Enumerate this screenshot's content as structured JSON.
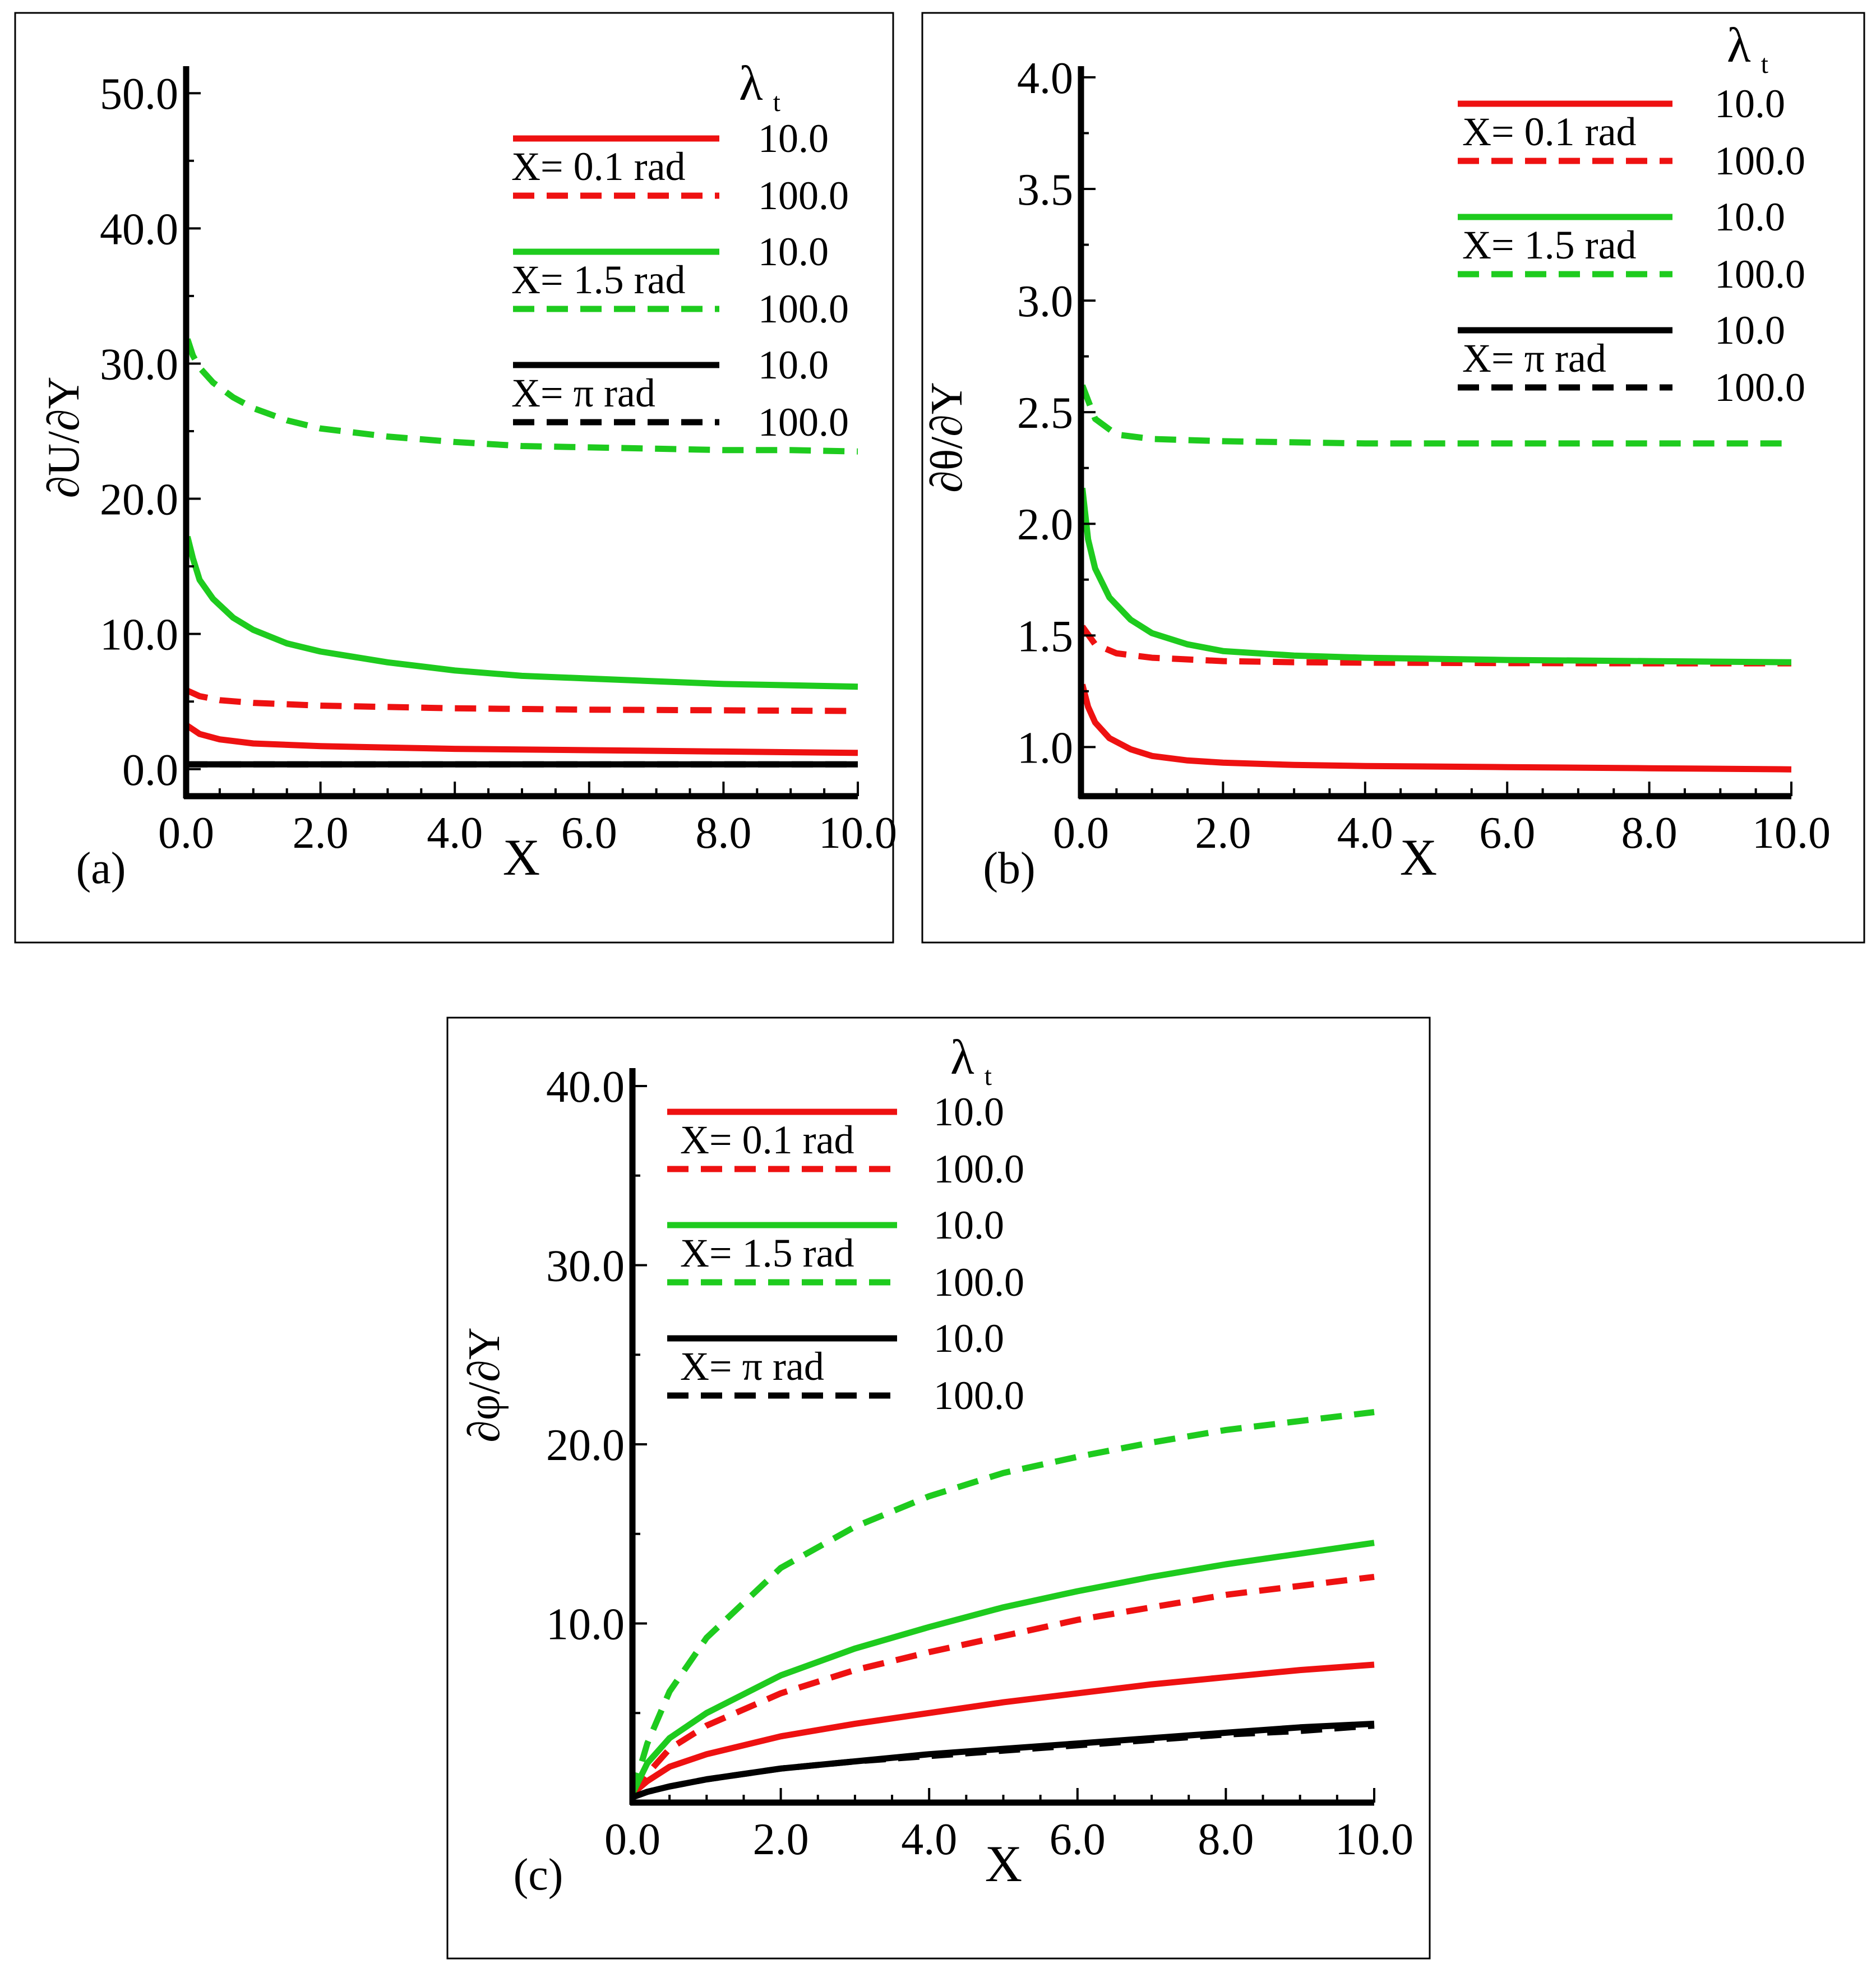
{
  "chart_data": [
    {
      "panel_label": "(a)",
      "type": "line",
      "xlabel": "X",
      "ylabel": "∂U/∂Y",
      "xlim": [
        0,
        10
      ],
      "ylim": [
        -2,
        52
      ],
      "xticks": [
        0,
        2,
        4,
        6,
        8,
        10
      ],
      "xtick_labels": [
        "0.0",
        "2.0",
        "4.0",
        "6.0",
        "8.0",
        "10.0"
      ],
      "yticks": [
        0,
        10,
        20,
        30,
        40,
        50
      ],
      "ytick_labels": [
        "0.0",
        "10.0",
        "20.0",
        "30.0",
        "40.0",
        "50.0"
      ],
      "legend": {
        "title": "λ",
        "title_sub": "t",
        "groups": [
          {
            "label": "X= 0.1 rad",
            "color": "#ee1111",
            "entries": [
              "10.0",
              "100.0"
            ]
          },
          {
            "label": "X= 1.5 rad",
            "color": "#1ecb1e",
            "entries": [
              "10.0",
              "100.0"
            ]
          },
          {
            "label": "X= π rad",
            "color": "#000000",
            "entries": [
              "10.0",
              "100.0"
            ]
          }
        ]
      },
      "series": [
        {
          "name": "X= 0.1 rad, λt = 10.0",
          "color": "#ee1111",
          "dash": false,
          "x": [
            0.02,
            0.2,
            0.5,
            1,
            2,
            3,
            4,
            6,
            8,
            10
          ],
          "y": [
            3.2,
            2.6,
            2.2,
            1.9,
            1.7,
            1.6,
            1.5,
            1.4,
            1.3,
            1.2
          ]
        },
        {
          "name": "X= 0.1 rad, λt = 100.0",
          "color": "#ee1111",
          "dash": true,
          "x": [
            0.02,
            0.2,
            0.5,
            1,
            2,
            3,
            4,
            6,
            8,
            10
          ],
          "y": [
            5.8,
            5.4,
            5.1,
            4.9,
            4.7,
            4.6,
            4.5,
            4.4,
            4.35,
            4.3
          ]
        },
        {
          "name": "X= 1.5 rad, λt = 10.0",
          "color": "#1ecb1e",
          "dash": false,
          "x": [
            0.02,
            0.1,
            0.2,
            0.4,
            0.7,
            1,
            1.5,
            2,
            3,
            4,
            5,
            6,
            7,
            8,
            9,
            10
          ],
          "y": [
            17.2,
            15.6,
            14.0,
            12.6,
            11.2,
            10.3,
            9.3,
            8.7,
            7.9,
            7.3,
            6.9,
            6.7,
            6.5,
            6.3,
            6.2,
            6.1
          ]
        },
        {
          "name": "X= 1.5 rad, λt = 100.0",
          "color": "#1ecb1e",
          "dash": true,
          "x": [
            0.02,
            0.1,
            0.2,
            0.4,
            0.7,
            1,
            1.5,
            2,
            3,
            4,
            5,
            6,
            7,
            8,
            9,
            10
          ],
          "y": [
            31.8,
            30.6,
            29.7,
            28.6,
            27.5,
            26.7,
            25.8,
            25.2,
            24.6,
            24.2,
            23.9,
            23.8,
            23.7,
            23.6,
            23.6,
            23.5
          ]
        },
        {
          "name": "X= π rad, λt = 10.0",
          "color": "#000000",
          "dash": false,
          "x": [
            0,
            10
          ],
          "y": [
            0.35,
            0.35
          ]
        },
        {
          "name": "X= π rad, λt = 100.0",
          "color": "#000000",
          "dash": true,
          "x": [
            0,
            10
          ],
          "y": [
            0.35,
            0.35
          ]
        }
      ]
    },
    {
      "panel_label": "(b)",
      "type": "line",
      "xlabel": "X",
      "ylabel": "∂θ/∂Y",
      "xlim": [
        0,
        10
      ],
      "ylim": [
        0.78,
        4.05
      ],
      "xticks": [
        0,
        2,
        4,
        6,
        8,
        10
      ],
      "xtick_labels": [
        "0.0",
        "2.0",
        "4.0",
        "6.0",
        "8.0",
        "10.0"
      ],
      "yticks": [
        1.0,
        1.5,
        2.0,
        2.5,
        3.0,
        3.5,
        4.0
      ],
      "ytick_labels": [
        "1.0",
        "1.5",
        "2.0",
        "2.5",
        "3.0",
        "3.5",
        "4.0"
      ],
      "legend": {
        "title": "λ",
        "title_sub": "t",
        "groups": [
          {
            "label": "X= 0.1 rad",
            "color": "#ee1111",
            "entries": [
              "10.0",
              "100.0"
            ]
          },
          {
            "label": "X= 1.5 rad",
            "color": "#1ecb1e",
            "entries": [
              "10.0",
              "100.0"
            ]
          },
          {
            "label": "X= π rad",
            "color": "#000000",
            "entries": [
              "10.0",
              "100.0"
            ]
          }
        ]
      },
      "series": [
        {
          "name": "X= 0.1 rad, λt = 10.0",
          "color": "#ee1111",
          "dash": false,
          "x": [
            0.02,
            0.1,
            0.2,
            0.4,
            0.7,
            1,
            1.5,
            2,
            3,
            4,
            6,
            8,
            10
          ],
          "y": [
            1.28,
            1.18,
            1.11,
            1.04,
            0.99,
            0.96,
            0.94,
            0.93,
            0.92,
            0.915,
            0.91,
            0.905,
            0.9
          ]
        },
        {
          "name": "X= 0.1 rad, λt = 100.0",
          "color": "#ee1111",
          "dash": true,
          "x": [
            0.02,
            0.2,
            0.5,
            1,
            2,
            3,
            4,
            6,
            8,
            10
          ],
          "y": [
            1.54,
            1.46,
            1.42,
            1.4,
            1.385,
            1.38,
            1.378,
            1.376,
            1.375,
            1.375
          ]
        },
        {
          "name": "X= 1.5 rad, λt = 10.0",
          "color": "#1ecb1e",
          "dash": false,
          "x": [
            0.02,
            0.1,
            0.2,
            0.4,
            0.7,
            1,
            1.5,
            2,
            3,
            4,
            5,
            6,
            8,
            10
          ],
          "y": [
            2.16,
            1.93,
            1.8,
            1.67,
            1.57,
            1.51,
            1.46,
            1.43,
            1.41,
            1.4,
            1.395,
            1.39,
            1.385,
            1.38
          ]
        },
        {
          "name": "X= 1.5 rad, λt = 100.0",
          "color": "#1ecb1e",
          "dash": true,
          "x": [
            0.02,
            0.2,
            0.5,
            1,
            2,
            3,
            4,
            6,
            8,
            10
          ],
          "y": [
            2.62,
            2.47,
            2.4,
            2.38,
            2.37,
            2.365,
            2.36,
            2.36,
            2.36,
            2.36
          ]
        },
        {
          "name": "X= π rad, λt = 10.0",
          "color": "#000000",
          "dash": false,
          "x": [
            0,
            10
          ],
          "y": [
            0.78,
            0.78
          ]
        },
        {
          "name": "X= π rad, λt = 100.0",
          "color": "#000000",
          "dash": true,
          "x": [
            0,
            10
          ],
          "y": [
            0.78,
            0.78
          ]
        }
      ]
    },
    {
      "panel_label": "(c)",
      "type": "line",
      "xlabel": "X",
      "ylabel": "∂φ/∂Y",
      "xlim": [
        0,
        10
      ],
      "ylim": [
        0,
        41
      ],
      "xticks": [
        0,
        2,
        4,
        6,
        8,
        10
      ],
      "xtick_labels": [
        "0.0",
        "2.0",
        "4.0",
        "6.0",
        "8.0",
        "10.0"
      ],
      "yticks": [
        10,
        20,
        30,
        40
      ],
      "ytick_labels": [
        "10.0",
        "20.0",
        "30.0",
        "40.0"
      ],
      "legend": {
        "title": "λ",
        "title_sub": "t",
        "groups": [
          {
            "label": "X= 0.1 rad",
            "color": "#ee1111",
            "entries": [
              "10.0",
              "100.0"
            ]
          },
          {
            "label": "X= 1.5 rad",
            "color": "#1ecb1e",
            "entries": [
              "10.0",
              "100.0"
            ]
          },
          {
            "label": "X= π rad",
            "color": "#000000",
            "entries": [
              "10.0",
              "100.0"
            ]
          }
        ]
      },
      "series": [
        {
          "name": "X= 0.1 rad, λt = 10.0",
          "color": "#ee1111",
          "dash": false,
          "x": [
            0,
            0.2,
            0.5,
            1,
            2,
            3,
            4,
            5,
            6,
            7,
            8,
            9,
            10
          ],
          "y": [
            0.5,
            1.2,
            2.0,
            2.7,
            3.7,
            4.4,
            5.0,
            5.6,
            6.1,
            6.6,
            7.0,
            7.4,
            7.7
          ]
        },
        {
          "name": "X= 0.1 rad, λt = 100.0",
          "color": "#ee1111",
          "dash": true,
          "x": [
            0,
            0.2,
            0.5,
            1,
            2,
            3,
            4,
            5,
            6,
            7,
            8,
            9,
            10
          ],
          "y": [
            0.5,
            1.6,
            3.0,
            4.3,
            6.1,
            7.4,
            8.4,
            9.3,
            10.2,
            10.9,
            11.6,
            12.1,
            12.6
          ]
        },
        {
          "name": "X= 1.5 rad, λt = 10.0",
          "color": "#1ecb1e",
          "dash": false,
          "x": [
            0,
            0.2,
            0.5,
            1,
            2,
            3,
            4,
            5,
            6,
            7,
            8,
            9,
            10
          ],
          "y": [
            0.5,
            2.2,
            3.6,
            5.0,
            7.1,
            8.6,
            9.8,
            10.9,
            11.8,
            12.6,
            13.3,
            13.9,
            14.5
          ]
        },
        {
          "name": "X= 1.5 rad, λt = 100.0",
          "color": "#1ecb1e",
          "dash": true,
          "x": [
            0,
            0.2,
            0.5,
            1,
            2,
            3,
            4,
            5,
            6,
            7,
            8,
            9,
            10
          ],
          "y": [
            0.5,
            3.3,
            6.2,
            9.2,
            13.1,
            15.4,
            17.1,
            18.4,
            19.3,
            20.1,
            20.8,
            21.3,
            21.8
          ]
        },
        {
          "name": "X= π rad, λt = 10.0",
          "color": "#000000",
          "dash": false,
          "x": [
            0,
            0.2,
            0.5,
            1,
            2,
            3,
            4,
            5,
            6,
            7,
            8,
            9,
            10
          ],
          "y": [
            0.3,
            0.6,
            0.9,
            1.3,
            1.9,
            2.3,
            2.7,
            3.0,
            3.3,
            3.6,
            3.9,
            4.2,
            4.4
          ]
        },
        {
          "name": "X= π rad, λt = 100.0",
          "color": "#000000",
          "dash": true,
          "x": [
            0,
            0.2,
            0.5,
            1,
            2,
            3,
            4,
            5,
            6,
            7,
            8,
            9,
            10
          ],
          "y": [
            0.3,
            0.6,
            0.9,
            1.3,
            1.9,
            2.3,
            2.6,
            2.9,
            3.2,
            3.5,
            3.8,
            4.0,
            4.3
          ]
        }
      ]
    }
  ]
}
